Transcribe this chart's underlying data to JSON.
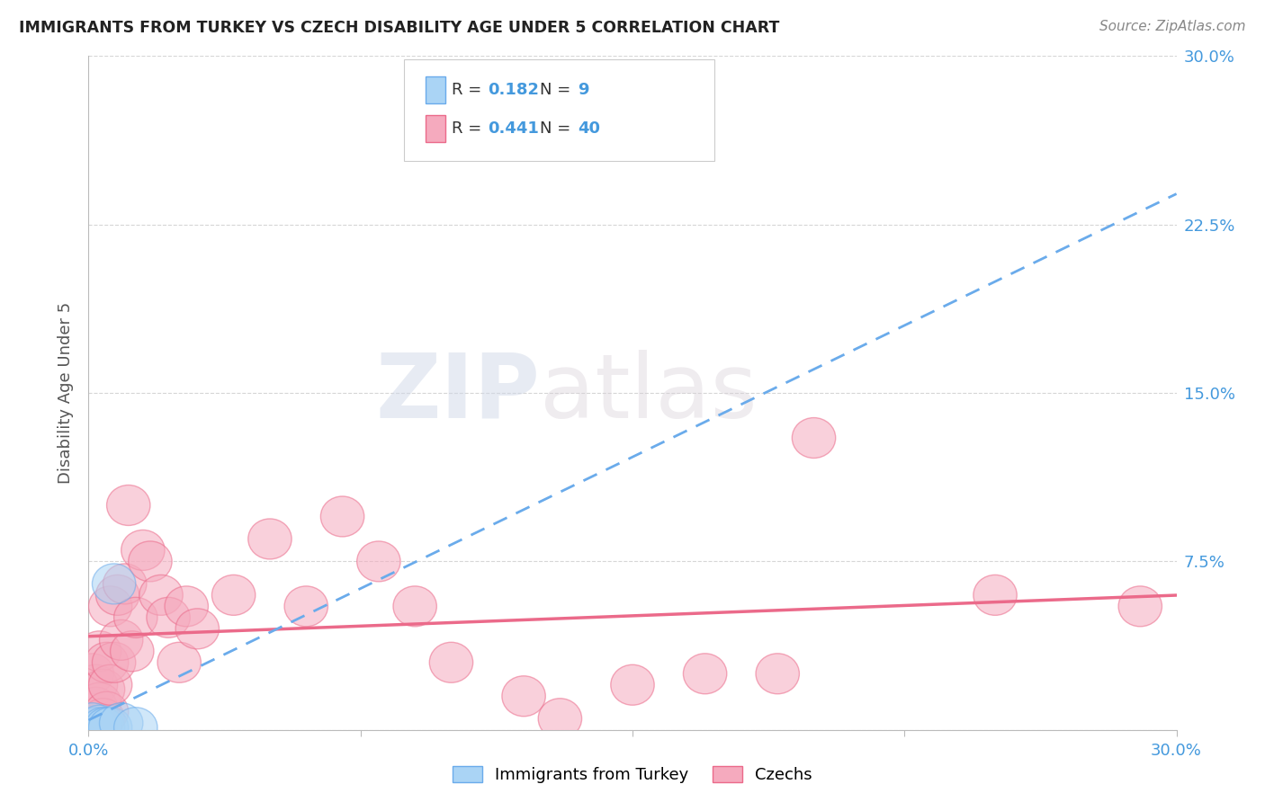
{
  "title": "IMMIGRANTS FROM TURKEY VS CZECH DISABILITY AGE UNDER 5 CORRELATION CHART",
  "source": "Source: ZipAtlas.com",
  "ylabel": "Disability Age Under 5",
  "xlim": [
    0.0,
    0.3
  ],
  "ylim": [
    0.0,
    0.3
  ],
  "grid_color": "#cccccc",
  "background_color": "#ffffff",
  "turkey_color": "#aad4f5",
  "turkey_edge_color": "#6aabeb",
  "czech_color": "#f5aabe",
  "czech_edge_color": "#eb6a8a",
  "turkey_line_color": "#6aabeb",
  "czech_line_color": "#eb6a8a",
  "accent_color": "#4499dd",
  "R_turkey": "0.182",
  "N_turkey": "9",
  "R_czech": "0.441",
  "N_czech": "40",
  "turkey_x": [
    0.001,
    0.002,
    0.003,
    0.004,
    0.005,
    0.006,
    0.007,
    0.009,
    0.013
  ],
  "turkey_y": [
    0.003,
    0.001,
    0.002,
    0.001,
    0.001,
    0.001,
    0.065,
    0.003,
    0.001
  ],
  "czech_x": [
    0.001,
    0.002,
    0.002,
    0.003,
    0.003,
    0.004,
    0.004,
    0.005,
    0.005,
    0.006,
    0.006,
    0.007,
    0.008,
    0.009,
    0.01,
    0.011,
    0.012,
    0.013,
    0.015,
    0.017,
    0.02,
    0.022,
    0.025,
    0.027,
    0.03,
    0.04,
    0.05,
    0.06,
    0.07,
    0.08,
    0.09,
    0.1,
    0.12,
    0.13,
    0.15,
    0.17,
    0.19,
    0.2,
    0.25,
    0.29
  ],
  "czech_y": [
    0.025,
    0.02,
    0.01,
    0.012,
    0.035,
    0.018,
    0.005,
    0.008,
    0.03,
    0.02,
    0.055,
    0.03,
    0.06,
    0.04,
    0.065,
    0.1,
    0.035,
    0.05,
    0.08,
    0.075,
    0.06,
    0.05,
    0.03,
    0.055,
    0.045,
    0.06,
    0.085,
    0.055,
    0.095,
    0.075,
    0.055,
    0.03,
    0.015,
    0.005,
    0.02,
    0.025,
    0.025,
    0.13,
    0.06,
    0.055
  ],
  "watermark_zip": "ZIP",
  "watermark_atlas": "atlas",
  "footer_labels": [
    "Immigrants from Turkey",
    "Czechs"
  ]
}
